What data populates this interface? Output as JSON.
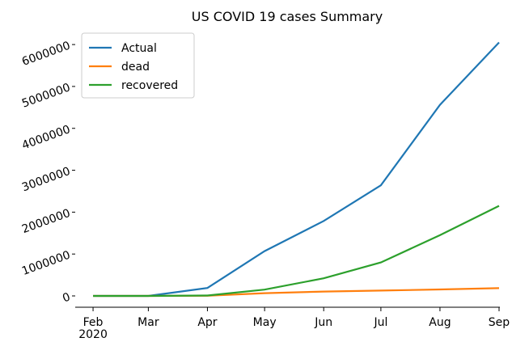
{
  "chart_data": {
    "type": "line",
    "title": "US COVID 19 cases Summary",
    "x": [
      "2020-02",
      "2020-03",
      "2020-04",
      "2020-05",
      "2020-06",
      "2020-07",
      "2020-08",
      "2020-09"
    ],
    "series": [
      {
        "name": "Actual",
        "color": "#1f77b4",
        "values": [
          0,
          0,
          190000,
          1070000,
          1790000,
          2640000,
          4560000,
          6050000
        ]
      },
      {
        "name": "dead",
        "color": "#ff7f0e",
        "values": [
          0,
          0,
          5000,
          65000,
          105000,
          128000,
          155000,
          185000
        ]
      },
      {
        "name": "recovered",
        "color": "#2ca02c",
        "values": [
          0,
          0,
          9000,
          150000,
          420000,
          800000,
          1450000,
          2150000
        ]
      }
    ],
    "xlim": [
      "2020-01",
      "2020-09"
    ],
    "xticks": [
      {
        "value": "2020-02",
        "label": "Feb"
      },
      {
        "value": "2020-03",
        "label": "Mar"
      },
      {
        "value": "2020-04",
        "label": "Apr"
      },
      {
        "value": "2020-05",
        "label": "May"
      },
      {
        "value": "2020-06",
        "label": "Jun"
      },
      {
        "value": "2020-07",
        "label": "Jul"
      },
      {
        "value": "2020-08",
        "label": "Aug"
      },
      {
        "value": "2020-09",
        "label": "Sep"
      }
    ],
    "x_year_label": "2020",
    "ylim": [
      -270000,
      6330000
    ],
    "yticks": [
      0,
      1000000,
      2000000,
      3000000,
      4000000,
      5000000,
      6000000
    ],
    "legend": "upper left"
  }
}
